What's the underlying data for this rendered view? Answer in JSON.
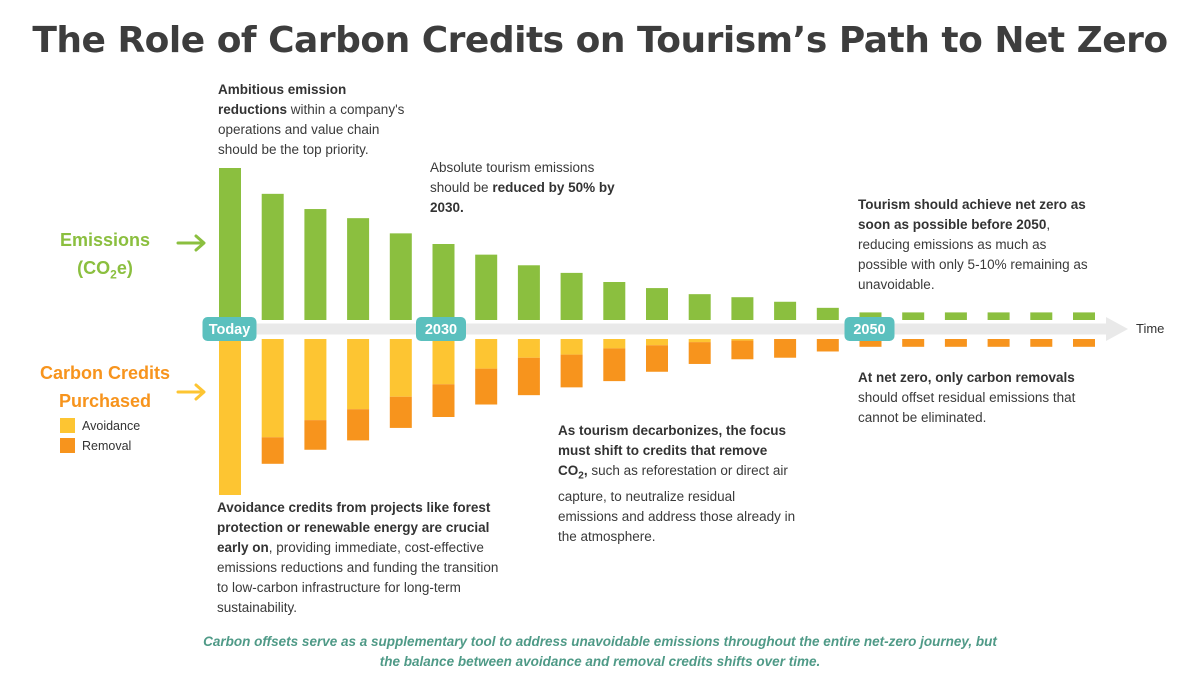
{
  "title": "The Role of Carbon Credits on Tourism’s Path to Net Zero",
  "colors": {
    "emissions": "#8bbf3f",
    "avoidance": "#fdc532",
    "removal": "#f7941d",
    "timeline_label": "#5bc0be",
    "arrow": "#e9e9e9",
    "footer": "#4f9a87"
  },
  "side_labels": {
    "emissions_line1": "Emissions",
    "emissions_line2_pre": "(CO",
    "emissions_line2_sub": "2",
    "emissions_line2_post": "e)",
    "credits_line1": "Carbon Credits",
    "credits_line2": "Purchased"
  },
  "legend": {
    "avoidance": "Avoidance",
    "removal": "Removal"
  },
  "timeline": {
    "today": "Today",
    "y2030": "2030",
    "y2050": "2050",
    "time": "Time"
  },
  "notes": {
    "n1_b": "Ambitious emission reductions",
    "n1_t": " within a company's operations and value chain should be the top priority.",
    "n2_t": "Absolute tourism emissions should be ",
    "n2_b": "reduced by 50% by 2030.",
    "n3_b": "Tourism should achieve net zero as soon as possible before 2050",
    "n3_t": ", reducing emissions as much as possible with only 5-10% remaining as unavoidable.",
    "n4_b": "At net zero, only carbon removals",
    "n4_t": " should offset residual emissions that cannot be eliminated.",
    "n5_b1": "As tourism decarbonizes, the focus must shift to credits that remove CO",
    "n5_sub": "2",
    "n5_b2": ",",
    "n5_t": " such as reforestation or direct air capture, to neutralize residual emissions and address those already in the atmosphere.",
    "n6_b": "Avoidance credits from projects like forest protection or renewable energy are crucial early on",
    "n6_t": ", providing immediate, cost-effective emissions reductions and funding the transition to low-carbon infrastructure for long-term sustainability."
  },
  "footer": "Carbon offsets serve as a supplementary tool to address unavoidable emissions throughout the entire net-zero journey, but the balance between avoidance and removal credits shifts over time.",
  "chart_data": {
    "type": "bar",
    "bars": 21,
    "emissions": [
      100,
      83,
      73,
      67,
      57,
      50,
      43,
      36,
      31,
      25,
      21,
      17,
      15,
      12,
      8,
      5,
      5,
      5,
      5,
      5,
      5
    ],
    "avoidance": [
      100,
      63,
      52,
      45,
      37,
      29,
      19,
      12,
      10,
      6,
      4,
      2,
      1,
      0,
      0,
      0,
      0,
      0,
      0,
      0,
      0
    ],
    "removal": [
      0,
      17,
      19,
      20,
      20,
      21,
      23,
      24,
      21,
      21,
      17,
      14,
      12,
      12,
      8,
      5,
      5,
      5,
      5,
      5,
      5
    ]
  }
}
